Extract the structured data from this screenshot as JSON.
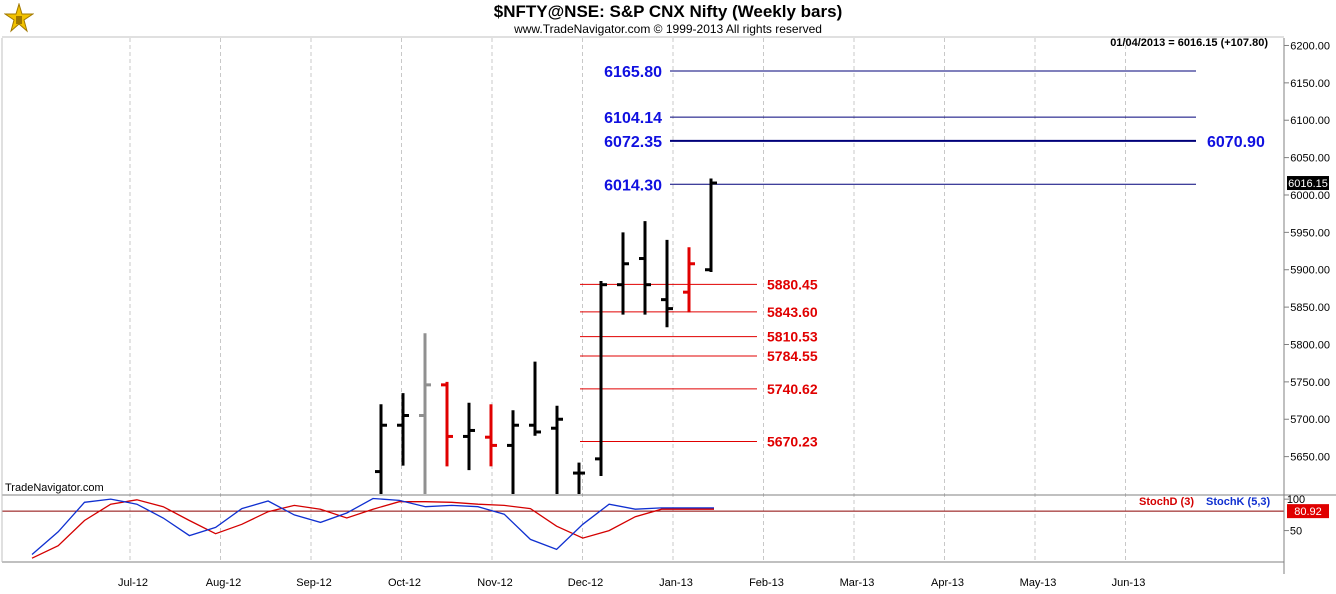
{
  "header": {
    "title": "$NFTY@NSE:  S&P CNX Nifty  (Weekly bars)",
    "subtitle": "www.TradeNavigator.com © 1999-2013 All rights reserved",
    "status": "01/04/2013 = 6016.15 (+107.80)",
    "watermark": "TradeNavigator.com"
  },
  "colors": {
    "blue_levels": "#1010e0",
    "red_levels": "#e00000",
    "bar_black": "#000000",
    "bar_red": "#e00000",
    "bar_gray": "#909090",
    "stoch_d": "#d40000",
    "stoch_k": "#1030d0",
    "grid": "#c8c8c8"
  },
  "chart_data": [
    {
      "type": "ohlc",
      "title": "$NFTY@NSE:  S&P CNX Nifty  (Weekly bars)",
      "ylim": [
        5600,
        6210
      ],
      "y_ticks": [
        5650,
        5700,
        5750,
        5800,
        5850,
        5900,
        5950,
        6000,
        6050,
        6100,
        6150,
        6200
      ],
      "x_tick_labels": [
        "Jul-12",
        "Aug-12",
        "Sep-12",
        "Oct-12",
        "Nov-12",
        "Dec-12",
        "Jan-13",
        "Feb-13",
        "Mar-13",
        "Apr-13",
        "May-13",
        "Jun-13"
      ],
      "last_price_label": "6016.15",
      "bars": [
        {
          "o": 5630,
          "h": 5720,
          "l": 5600,
          "c": 5692,
          "color": "black"
        },
        {
          "o": 5692,
          "h": 5735,
          "l": 5638,
          "c": 5705,
          "color": "black"
        },
        {
          "o": 5705,
          "h": 5815,
          "l": 5600,
          "c": 5746,
          "color": "gray"
        },
        {
          "o": 5746,
          "h": 5750,
          "l": 5637,
          "c": 5677,
          "color": "red"
        },
        {
          "o": 5677,
          "h": 5722,
          "l": 5632,
          "c": 5685,
          "color": "black"
        },
        {
          "o": 5676,
          "h": 5720,
          "l": 5637,
          "c": 5665,
          "color": "red"
        },
        {
          "o": 5665,
          "h": 5712,
          "l": 5600,
          "c": 5692,
          "color": "black"
        },
        {
          "o": 5692,
          "h": 5777,
          "l": 5678,
          "c": 5683,
          "color": "black"
        },
        {
          "o": 5688,
          "h": 5718,
          "l": 5600,
          "c": 5700,
          "color": "black"
        },
        {
          "o": 5628,
          "h": 5642,
          "l": 5600,
          "c": 5628,
          "color": "black"
        },
        {
          "o": 5647,
          "h": 5885,
          "l": 5624,
          "c": 5880,
          "color": "black"
        },
        {
          "o": 5880,
          "h": 5950,
          "l": 5840,
          "c": 5908,
          "color": "black"
        },
        {
          "o": 5915,
          "h": 5965,
          "l": 5840,
          "c": 5880,
          "color": "black"
        },
        {
          "o": 5860,
          "h": 5940,
          "l": 5823,
          "c": 5848,
          "color": "black"
        },
        {
          "o": 5870,
          "h": 5930,
          "l": 5843,
          "c": 5908,
          "color": "red"
        },
        {
          "o": 5900,
          "h": 6022,
          "l": 5897,
          "c": 6016,
          "color": "black"
        }
      ],
      "levels": [
        {
          "value": 6165.8,
          "label": "6165.80",
          "color": "blue"
        },
        {
          "value": 6104.14,
          "label": "6104.14",
          "color": "blue"
        },
        {
          "value": 6072.35,
          "label": "6072.35",
          "color": "blue",
          "right_label": "6070.90"
        },
        {
          "value": 6014.3,
          "label": "6014.30",
          "color": "blue"
        },
        {
          "value": 5880.45,
          "label": "5880.45",
          "color": "red"
        },
        {
          "value": 5843.6,
          "label": "5843.60",
          "color": "red"
        },
        {
          "value": 5810.53,
          "label": "5810.53",
          "color": "red"
        },
        {
          "value": 5784.55,
          "label": "5784.55",
          "color": "red"
        },
        {
          "value": 5740.62,
          "label": "5740.62",
          "color": "red"
        },
        {
          "value": 5670.23,
          "label": "5670.23",
          "color": "red"
        }
      ]
    },
    {
      "type": "line",
      "title": "",
      "ylim": [
        0,
        105
      ],
      "y_ticks": [
        50,
        100
      ],
      "reference_line": 80.92,
      "last_value_label": "80.92",
      "series": [
        {
          "name": "StochD (3)",
          "color": "red",
          "values": [
            6,
            26,
            66,
            92,
            99,
            88,
            66,
            45,
            60,
            80,
            90,
            84,
            70,
            84,
            96,
            96,
            95,
            92,
            90,
            85,
            57,
            38,
            50,
            72,
            84,
            84,
            84
          ]
        },
        {
          "name": "StochK (5,3)",
          "color": "blue",
          "values": [
            12,
            48,
            95,
            100,
            92,
            70,
            42,
            55,
            85,
            97,
            75,
            63,
            78,
            101,
            98,
            88,
            90,
            88,
            76,
            36,
            20,
            60,
            92,
            84,
            86,
            86,
            86
          ]
        }
      ]
    }
  ]
}
